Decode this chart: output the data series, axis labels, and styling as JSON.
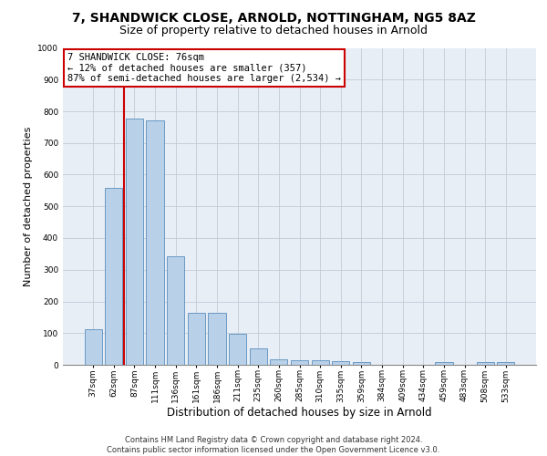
{
  "title1": "7, SHANDWICK CLOSE, ARNOLD, NOTTINGHAM, NG5 8AZ",
  "title2": "Size of property relative to detached houses in Arnold",
  "xlabel": "Distribution of detached houses by size in Arnold",
  "ylabel": "Number of detached properties",
  "categories": [
    "37sqm",
    "62sqm",
    "87sqm",
    "111sqm",
    "136sqm",
    "161sqm",
    "186sqm",
    "211sqm",
    "235sqm",
    "260sqm",
    "285sqm",
    "310sqm",
    "335sqm",
    "359sqm",
    "384sqm",
    "409sqm",
    "434sqm",
    "459sqm",
    "483sqm",
    "508sqm",
    "533sqm"
  ],
  "values": [
    112,
    557,
    778,
    770,
    343,
    165,
    165,
    98,
    52,
    18,
    15,
    15,
    11,
    10,
    0,
    0,
    0,
    10,
    0,
    10,
    8
  ],
  "bar_color": "#b8d0e8",
  "bar_edge_color": "#5a8fbe",
  "vline_color": "#cc0000",
  "vline_x": 1.5,
  "annotation_line1": "7 SHANDWICK CLOSE: 76sqm",
  "annotation_line2": "← 12% of detached houses are smaller (357)",
  "annotation_line3": "87% of semi-detached houses are larger (2,534) →",
  "annotation_box_facecolor": "white",
  "annotation_box_edgecolor": "#cc0000",
  "ylim": [
    0,
    1000
  ],
  "yticks": [
    0,
    100,
    200,
    300,
    400,
    500,
    600,
    700,
    800,
    900,
    1000
  ],
  "bg_color": "#e8eef6",
  "grid_color": "#c0ccd8",
  "title1_fontsize": 10,
  "title2_fontsize": 9,
  "xlabel_fontsize": 8.5,
  "ylabel_fontsize": 8,
  "tick_fontsize": 6.5,
  "annot_fontsize": 7.5,
  "footer_text": "Contains HM Land Registry data © Crown copyright and database right 2024.\nContains public sector information licensed under the Open Government Licence v3.0.",
  "footer_fontsize": 6
}
